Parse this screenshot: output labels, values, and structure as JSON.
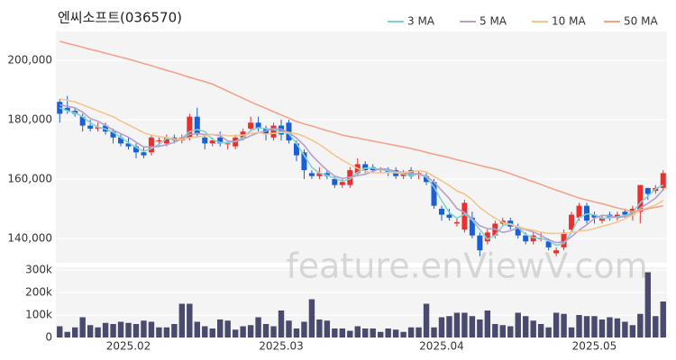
{
  "chart_data": [
    {
      "type": "candlestick",
      "title": "엔씨소프트(036570)",
      "watermark": "feature.enViewV.com",
      "up_color": "#e8302f",
      "down_color": "#1a5fd6",
      "grid": true,
      "legend": "top-right",
      "ylim": [
        131800,
        209700
      ],
      "yticks": [
        {
          "value": 140000,
          "label": "140,000"
        },
        {
          "value": 160000,
          "label": "160,000"
        },
        {
          "value": 180000,
          "label": "180,000"
        },
        {
          "value": 200000,
          "label": "200,000"
        }
      ],
      "open": [
        186000,
        184000,
        183000,
        181000,
        178000,
        177000,
        178000,
        176000,
        174000,
        172000,
        171000,
        169000,
        169000,
        173000,
        172000,
        174000,
        173000,
        174000,
        181000,
        174000,
        172000,
        174000,
        172000,
        171000,
        174000,
        177000,
        179000,
        177000,
        174000,
        178000,
        179000,
        172000,
        169000,
        162000,
        161000,
        162000,
        160000,
        158000,
        158000,
        162000,
        165000,
        164000,
        163000,
        163000,
        163000,
        161000,
        163000,
        162000,
        161000,
        159000,
        150000,
        148000,
        145000,
        143000,
        147000,
        141000,
        139000,
        141000,
        145000,
        146000,
        144000,
        141000,
        139000,
        140000,
        139000,
        135000,
        137000,
        143000,
        147000,
        151000,
        148000,
        146000,
        148000,
        147000,
        149000,
        148000,
        149000,
        157000,
        156000,
        157000
      ],
      "high": [
        187000,
        188000,
        184000,
        182000,
        180000,
        179000,
        179000,
        177000,
        175000,
        174000,
        172000,
        171000,
        175000,
        174000,
        175000,
        175000,
        175000,
        182000,
        184000,
        175000,
        174000,
        176000,
        173000,
        175000,
        177000,
        181000,
        181000,
        178000,
        179000,
        180000,
        180000,
        173000,
        170000,
        163000,
        164000,
        163000,
        161000,
        160000,
        164000,
        167000,
        166000,
        165000,
        164000,
        164000,
        164000,
        163000,
        164000,
        163000,
        162000,
        160000,
        151000,
        150000,
        147000,
        153000,
        149000,
        142000,
        143000,
        146000,
        147000,
        147000,
        145000,
        142000,
        142000,
        142000,
        140000,
        137000,
        143000,
        149000,
        152000,
        152000,
        149000,
        148000,
        149000,
        149000,
        150000,
        151000,
        158000,
        157000,
        158000,
        163000
      ],
      "low": [
        179000,
        182000,
        181000,
        176000,
        176000,
        176000,
        175000,
        172000,
        171000,
        170000,
        167000,
        167000,
        168000,
        171000,
        171000,
        172000,
        172000,
        173000,
        174000,
        170000,
        171000,
        171000,
        170000,
        170000,
        173000,
        176000,
        176000,
        173000,
        173000,
        173000,
        172000,
        166000,
        160000,
        160000,
        160000,
        160000,
        157000,
        157000,
        157000,
        161000,
        162000,
        162000,
        162000,
        161000,
        160000,
        160000,
        160000,
        160000,
        158000,
        150000,
        146000,
        146000,
        144000,
        142000,
        140000,
        134000,
        138000,
        140000,
        144000,
        143000,
        140000,
        138000,
        138000,
        139000,
        136000,
        134000,
        136000,
        142000,
        146000,
        145000,
        145000,
        145000,
        146000,
        146000,
        147000,
        146000,
        145000,
        153000,
        155000,
        156000
      ],
      "close": [
        182000,
        183000,
        182000,
        178000,
        177000,
        177500,
        176000,
        174000,
        172000,
        171000,
        169000,
        168000,
        174000,
        173000,
        174000,
        173000,
        174000,
        181000,
        175000,
        172000,
        173000,
        172000,
        172000,
        174000,
        176000,
        179000,
        177000,
        175000,
        178000,
        175000,
        173000,
        168000,
        163000,
        161000,
        162000,
        161000,
        158000,
        159000,
        163000,
        165000,
        163000,
        163000,
        163500,
        162000,
        161000,
        162000,
        161000,
        162000,
        159000,
        151000,
        148000,
        147000,
        145500,
        152000,
        141000,
        136000,
        142000,
        145000,
        146000,
        144000,
        141000,
        139000,
        141000,
        140000,
        137000,
        136000,
        142000,
        148000,
        151000,
        146000,
        147000,
        147000,
        147000,
        148000,
        148000,
        150000,
        158000,
        155000,
        157000,
        162000
      ],
      "series": [
        {
          "name": "3 MA",
          "color": "#7fd3d3",
          "values": [
            184000,
            183000,
            182300,
            181000,
            179000,
            177500,
            176800,
            175800,
            174000,
            172300,
            170700,
            169300,
            170300,
            171700,
            173700,
            173300,
            173700,
            176000,
            176700,
            176000,
            173300,
            172300,
            172300,
            172700,
            174000,
            176300,
            177300,
            177000,
            176700,
            176000,
            175300,
            172000,
            168000,
            164000,
            162000,
            161300,
            160300,
            159300,
            160000,
            162300,
            163700,
            163700,
            163200,
            162800,
            162200,
            161700,
            161300,
            161700,
            160700,
            157300,
            152700,
            148700,
            146800,
            148200,
            146200,
            143000,
            139700,
            141000,
            144300,
            145000,
            143700,
            141300,
            140300,
            140000,
            139300,
            137700,
            138300,
            142000,
            147000,
            148300,
            148000,
            146700,
            147000,
            147300,
            147700,
            148700,
            152000,
            154300,
            156700,
            158000
          ]
        },
        {
          "name": "5 MA",
          "color": "#b4a0cc",
          "values": [
            185000,
            184500,
            184000,
            182500,
            180400,
            179500,
            178100,
            176500,
            175300,
            174100,
            172400,
            170800,
            170800,
            171000,
            171600,
            172400,
            173600,
            175000,
            175400,
            175000,
            175000,
            174600,
            172800,
            172600,
            173400,
            174600,
            175600,
            176200,
            177000,
            176800,
            175600,
            173800,
            171400,
            168000,
            165400,
            163000,
            161000,
            160200,
            160600,
            161200,
            161600,
            162600,
            163500,
            163300,
            162500,
            162300,
            161900,
            161700,
            161000,
            159000,
            156200,
            153400,
            150100,
            148700,
            146700,
            144300,
            143300,
            143200,
            142000,
            142600,
            143600,
            143000,
            142200,
            141000,
            139600,
            138600,
            138800,
            140600,
            142800,
            144600,
            146800,
            147800,
            147600,
            147000,
            147400,
            148000,
            150200,
            151800,
            153600,
            156400
          ]
        },
        {
          "name": "10 MA",
          "color": "#f3c68e",
          "values": [
            187000,
            186500,
            186000,
            185000,
            184000,
            183000,
            182000,
            181000,
            179500,
            178300,
            177000,
            175600,
            174800,
            174300,
            174000,
            173500,
            173300,
            173900,
            174200,
            174600,
            175000,
            175000,
            174600,
            174600,
            174800,
            175400,
            175700,
            175100,
            175400,
            175700,
            175700,
            175300,
            174400,
            173100,
            171700,
            169900,
            168000,
            166400,
            164900,
            163600,
            162600,
            162100,
            162100,
            162200,
            162100,
            162200,
            162500,
            162800,
            162400,
            160900,
            159400,
            157800,
            156000,
            155000,
            153000,
            150400,
            148500,
            146800,
            145400,
            144700,
            144000,
            143200,
            142800,
            142100,
            141700,
            141700,
            141700,
            142000,
            142500,
            142700,
            143300,
            144100,
            144700,
            145500,
            146600,
            148000,
            149600,
            150300,
            151300,
            152700
          ]
        },
        {
          "name": "50 MA",
          "color": "#f3a28c",
          "values": [
            206400,
            205700,
            205100,
            204400,
            203700,
            203100,
            202400,
            201700,
            201100,
            200400,
            199700,
            198900,
            198200,
            197400,
            196600,
            195900,
            195100,
            194300,
            193500,
            192800,
            192000,
            190800,
            189600,
            188400,
            187200,
            186000,
            184900,
            183800,
            182700,
            181600,
            180500,
            179400,
            178600,
            177900,
            177100,
            176300,
            175600,
            174800,
            174300,
            173800,
            173300,
            172800,
            172300,
            171800,
            171300,
            170800,
            170300,
            169700,
            169000,
            168400,
            167800,
            167200,
            166500,
            165900,
            165300,
            164600,
            164000,
            163400,
            162700,
            161800,
            160900,
            160000,
            159100,
            158200,
            157200,
            156300,
            155400,
            154500,
            153600,
            153000,
            152300,
            151700,
            151000,
            150300,
            149700,
            149000,
            149500,
            150000,
            150500,
            151000
          ]
        }
      ]
    },
    {
      "type": "bar",
      "color": "#4a4a6e",
      "grid": true,
      "ylim": [
        0,
        312000
      ],
      "yticks": [
        0,
        {
          "value": 100000,
          "label": "100k"
        },
        {
          "value": 200000,
          "label": "200k"
        },
        {
          "value": 300000,
          "label": "300k"
        }
      ],
      "categories": [
        null,
        null,
        null,
        null,
        null,
        null,
        null,
        null,
        null,
        "2025.02",
        null,
        null,
        null,
        null,
        null,
        null,
        null,
        null,
        null,
        null,
        null,
        null,
        null,
        null,
        null,
        null,
        null,
        null,
        null,
        "2025.03",
        null,
        null,
        null,
        null,
        null,
        null,
        null,
        null,
        null,
        null,
        null,
        null,
        null,
        null,
        null,
        null,
        null,
        null,
        null,
        null,
        "2025.04",
        null,
        null,
        null,
        null,
        null,
        null,
        null,
        null,
        null,
        null,
        null,
        null,
        null,
        null,
        null,
        null,
        null,
        null,
        null,
        "2025.05",
        null,
        null,
        null,
        null,
        null,
        null,
        null,
        null,
        null
      ],
      "values": [
        50000,
        25000,
        45000,
        90000,
        55000,
        45000,
        65000,
        60000,
        70000,
        65000,
        60000,
        75000,
        70000,
        45000,
        45000,
        60000,
        150000,
        150000,
        70000,
        50000,
        40000,
        80000,
        75000,
        35000,
        50000,
        55000,
        90000,
        60000,
        50000,
        120000,
        75000,
        40000,
        70000,
        170000,
        80000,
        75000,
        40000,
        40000,
        30000,
        50000,
        40000,
        40000,
        25000,
        40000,
        35000,
        25000,
        45000,
        45000,
        150000,
        45000,
        90000,
        95000,
        110000,
        110000,
        95000,
        80000,
        120000,
        60000,
        55000,
        50000,
        110000,
        95000,
        75000,
        60000,
        45000,
        110000,
        105000,
        45000,
        100000,
        95000,
        95000,
        80000,
        90000,
        85000,
        70000,
        55000,
        105000,
        290000,
        95000,
        160000
      ]
    }
  ]
}
